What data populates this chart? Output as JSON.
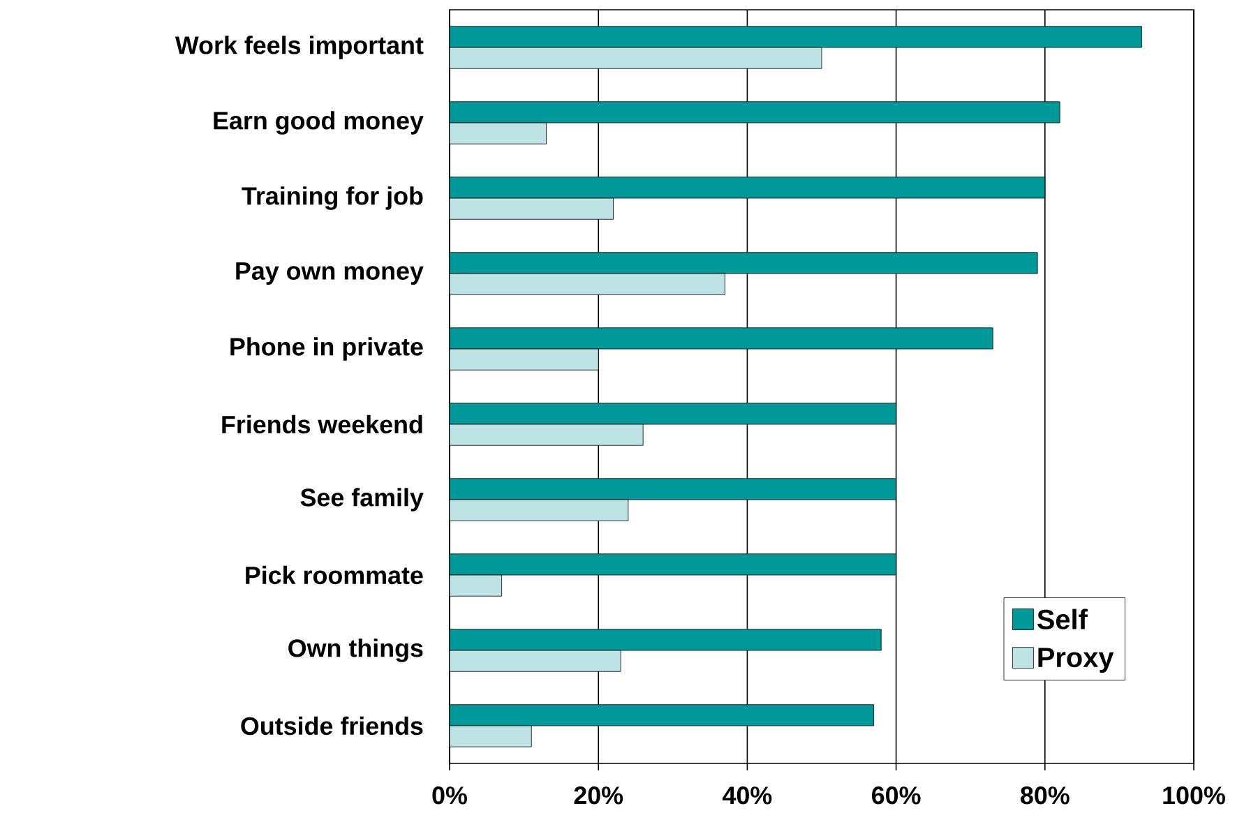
{
  "chart_data": {
    "type": "bar",
    "orientation": "horizontal",
    "categories": [
      "Work feels important",
      "Earn good money",
      "Training for job",
      "Pay own money",
      "Phone in private",
      "Friends weekend",
      "See family",
      "Pick roommate",
      "Own things",
      "Outside friends"
    ],
    "series": [
      {
        "name": "Self",
        "color": "#009999",
        "values": [
          93,
          82,
          80,
          79,
          73,
          60,
          60,
          60,
          58,
          57
        ]
      },
      {
        "name": "Proxy",
        "color": "#bde3e5",
        "values": [
          50,
          13,
          22,
          37,
          20,
          26,
          24,
          7,
          23,
          11
        ]
      }
    ],
    "xlim": [
      0,
      100
    ],
    "xticks": [
      {
        "value": 0,
        "label": "0%"
      },
      {
        "value": 20,
        "label": "20%"
      },
      {
        "value": 40,
        "label": "40%"
      },
      {
        "value": 60,
        "label": "60%"
      },
      {
        "value": 80,
        "label": "80%"
      },
      {
        "value": 100,
        "label": "100%"
      }
    ],
    "grid": "x",
    "legend": "bottom right"
  }
}
